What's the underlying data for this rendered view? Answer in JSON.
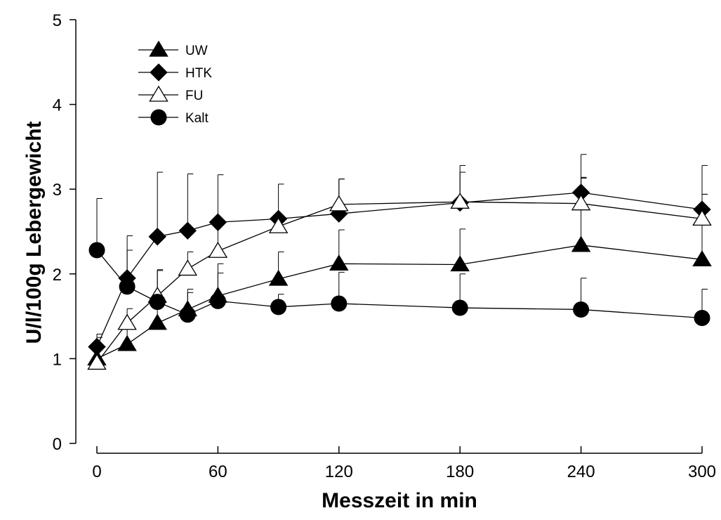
{
  "chart_data": {
    "type": "line",
    "title": "",
    "xlabel": "Messzeit in min",
    "ylabel": "U/l/100g Lebergewicht",
    "xlim": [
      0,
      300
    ],
    "ylim": [
      0,
      5
    ],
    "x_ticks": [
      0,
      60,
      120,
      180,
      240,
      300
    ],
    "y_ticks": [
      0,
      1,
      2,
      3,
      4,
      5
    ],
    "x_tick_labels": [
      "0",
      "60",
      "120",
      "180",
      "240",
      "300"
    ],
    "y_tick_labels": [
      "0",
      "1",
      "2",
      "3",
      "4",
      "5"
    ],
    "grid": false,
    "legend_position": "top-left",
    "x": [
      0,
      15,
      30,
      45,
      60,
      90,
      120,
      180,
      240,
      300
    ],
    "series": [
      {
        "name": "UW",
        "marker": "triangle-filled",
        "values": [
          1.0,
          1.17,
          1.42,
          1.58,
          1.74,
          1.94,
          2.12,
          2.11,
          2.34,
          2.17
        ],
        "error": [
          0.15,
          0.2,
          0.3,
          0.2,
          0.38,
          0.32,
          0.4,
          0.42,
          0.8,
          0.77
        ]
      },
      {
        "name": "HTK",
        "marker": "diamond-filled",
        "values": [
          1.14,
          1.95,
          2.44,
          2.51,
          2.61,
          2.65,
          2.71,
          2.84,
          2.96,
          2.76
        ],
        "error": [
          0.15,
          0.5,
          0.76,
          0.67,
          0.56,
          0.41,
          0.41,
          0.44,
          0.45,
          0.52
        ]
      },
      {
        "name": "FU",
        "marker": "triangle-open",
        "values": [
          0.95,
          1.42,
          1.74,
          2.06,
          2.27,
          2.56,
          2.82,
          2.85,
          2.83,
          2.65
        ],
        "error": [
          0.3,
          0.17,
          0.3,
          0.2,
          0.35,
          0.1,
          0.3,
          0.35,
          0.3,
          0.29
        ]
      },
      {
        "name": "Kalt",
        "marker": "circle-filled",
        "values": [
          2.28,
          1.85,
          1.67,
          1.52,
          1.68,
          1.61,
          1.65,
          1.6,
          1.58,
          1.48
        ],
        "error": [
          0.61,
          0.43,
          0.38,
          0.3,
          0.33,
          0.15,
          0.37,
          0.4,
          0.37,
          0.34
        ]
      }
    ]
  }
}
